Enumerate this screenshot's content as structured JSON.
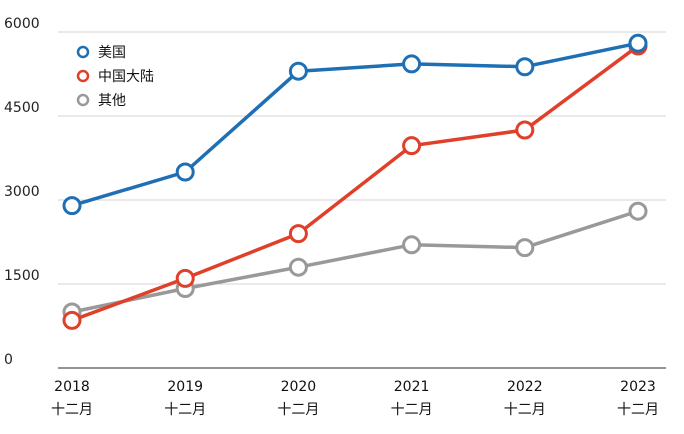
{
  "chart_data": {
    "type": "line",
    "categories": [
      {
        "year": "2018",
        "month": "十二月"
      },
      {
        "year": "2019",
        "month": "十二月"
      },
      {
        "year": "2020",
        "month": "十二月"
      },
      {
        "year": "2021",
        "month": "十二月"
      },
      {
        "year": "2022",
        "month": "十二月"
      },
      {
        "year": "2023",
        "month": "十二月"
      }
    ],
    "ylim": [
      0,
      6000
    ],
    "yticks": [
      "0",
      "1500",
      "3000",
      "4500",
      "6000"
    ],
    "grid": true,
    "legend_position": "top-left",
    "series": [
      {
        "name": "美国",
        "color": "#1f6fb5",
        "values": [
          2900,
          3500,
          5300,
          5430,
          5380,
          5800
        ]
      },
      {
        "name": "中国大陆",
        "color": "#e0402a",
        "values": [
          850,
          1600,
          2400,
          3970,
          4250,
          5750
        ]
      },
      {
        "name": "其他",
        "color": "#999999",
        "values": [
          1000,
          1420,
          1800,
          2200,
          2150,
          2800
        ]
      }
    ]
  }
}
